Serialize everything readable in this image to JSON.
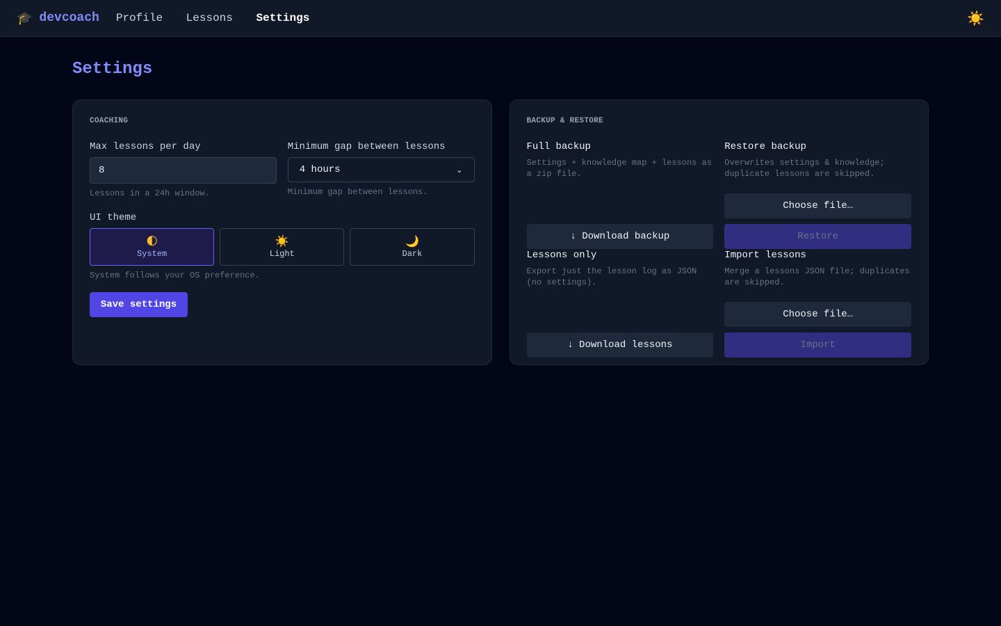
{
  "header": {
    "brand": "devcoach",
    "brand_icon": "🎓",
    "nav": [
      "Profile",
      "Lessons",
      "Settings"
    ],
    "active": "Settings",
    "theme_icon": "☀️"
  },
  "page_title": "Settings",
  "coaching": {
    "section": "COACHING",
    "max_label": "Max lessons per day",
    "max_value": "8",
    "max_help": "Lessons in a 24h window.",
    "gap_label": "Minimum gap between lessons",
    "gap_value": "4 hours",
    "gap_help": "Minimum gap between lessons.",
    "theme_label": "UI theme",
    "themes": [
      {
        "icon": "🌓",
        "label": "System"
      },
      {
        "icon": "☀️",
        "label": "Light"
      },
      {
        "icon": "🌙",
        "label": "Dark"
      }
    ],
    "selected_theme": "System",
    "theme_help": "System follows your OS preference.",
    "save": "Save settings"
  },
  "backup": {
    "section": "BACKUP & RESTORE",
    "full": {
      "title": "Full backup",
      "desc": "Settings + knowledge map + lessons as a zip file.",
      "button": "↓ Download backup"
    },
    "restore": {
      "title": "Restore backup",
      "desc": "Overwrites settings & knowledge; duplicate lessons are skipped.",
      "choose": "Choose file…",
      "button": "Restore"
    },
    "lessons": {
      "title": "Lessons only",
      "desc": "Export just the lesson log as JSON (no settings).",
      "button": "↓ Download lessons"
    },
    "import": {
      "title": "Import lessons",
      "desc": "Merge a lessons JSON file; duplicates are skipped.",
      "choose": "Choose file…",
      "button": "Import"
    }
  },
  "colors": {
    "accent": "#4f46e5",
    "title": "#818cf8",
    "background": "#020617",
    "card": "#111827"
  }
}
